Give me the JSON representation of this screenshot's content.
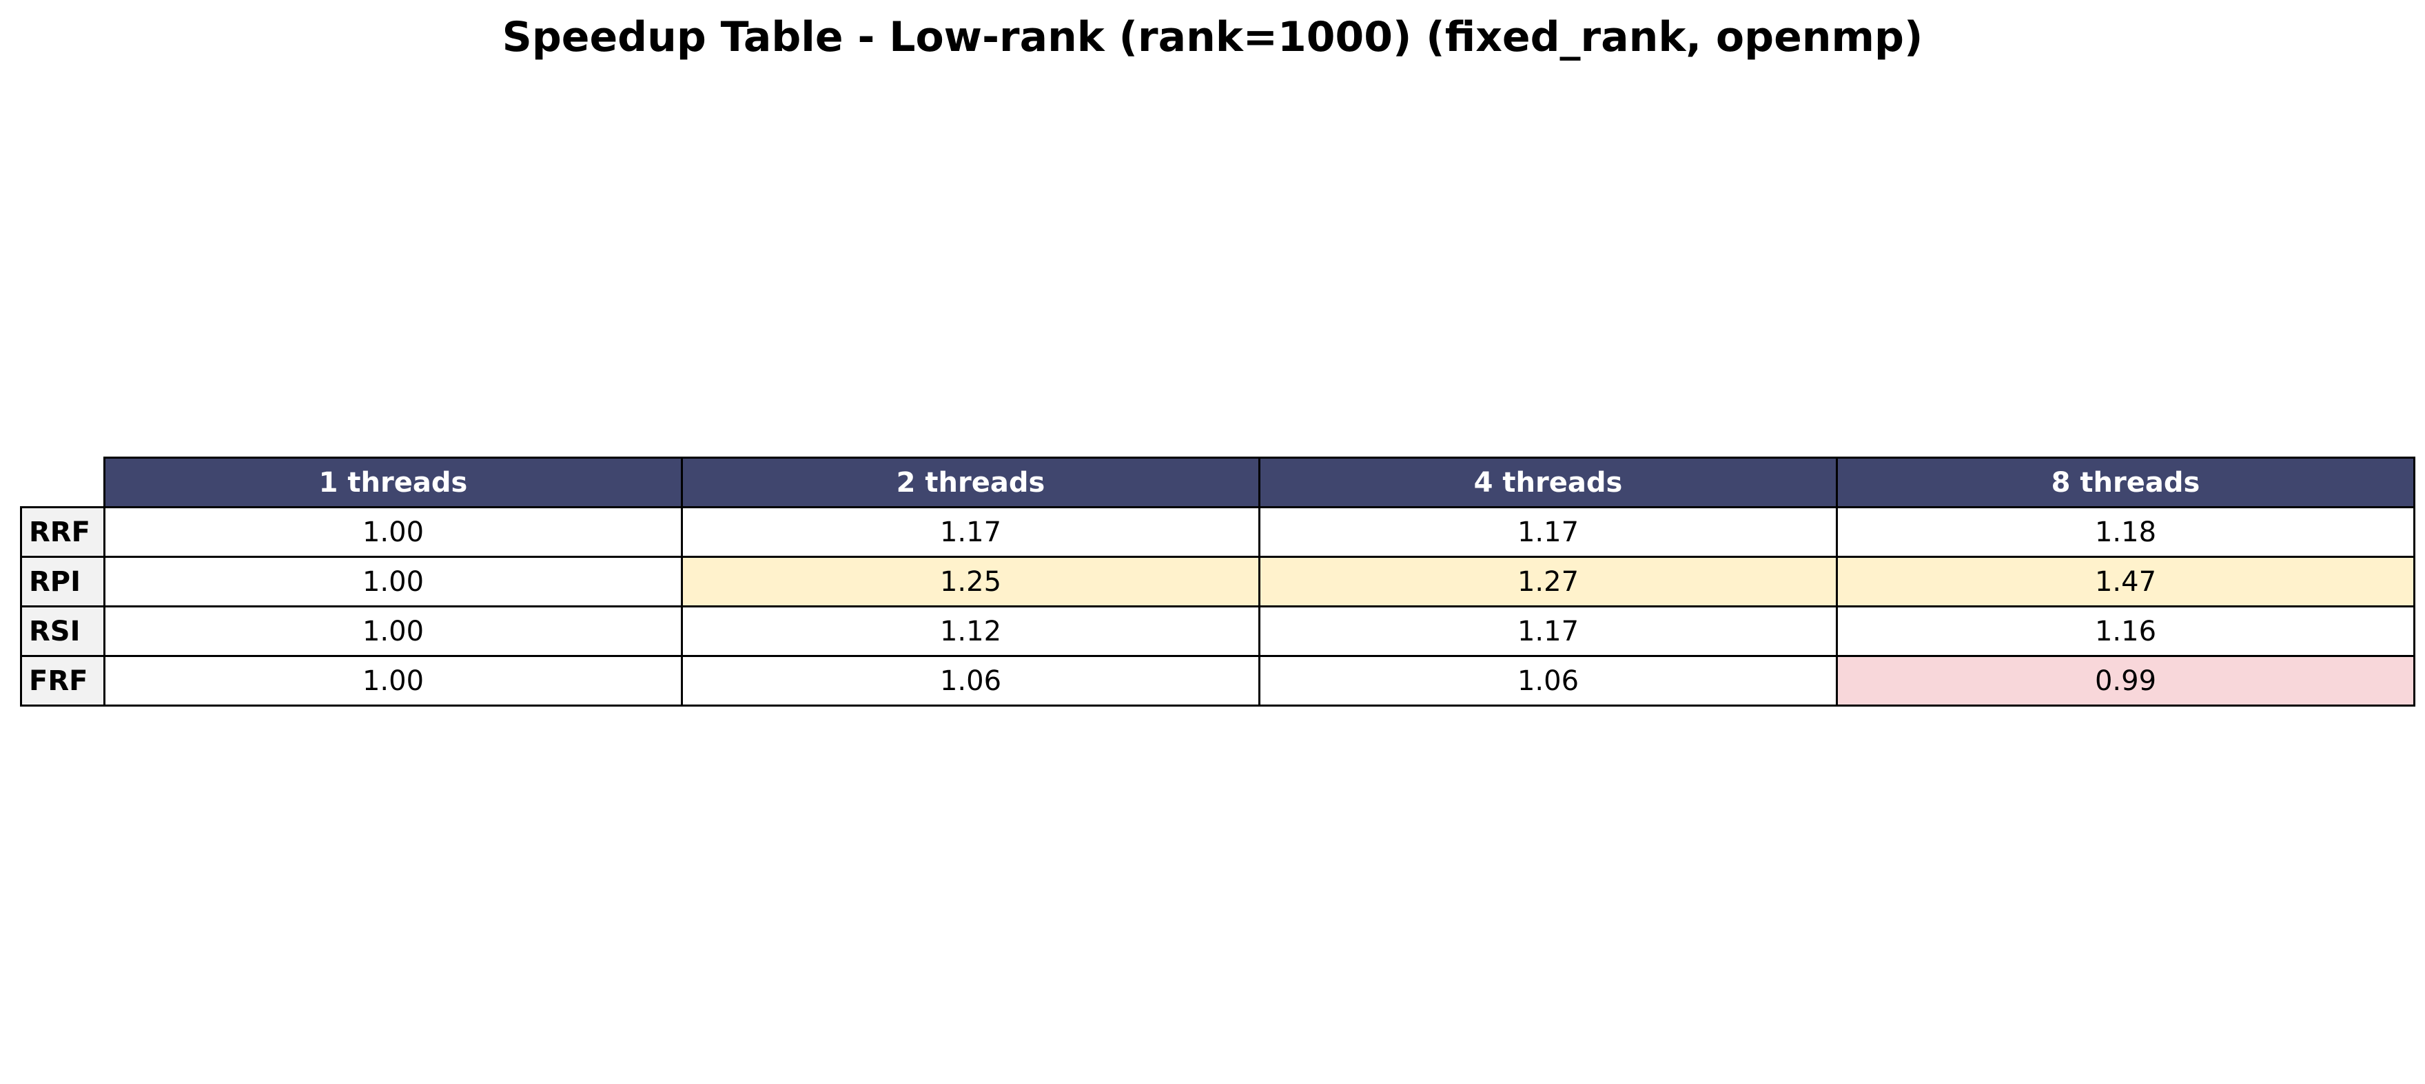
{
  "chart_data": {
    "type": "table",
    "title": "Speedup Table - Low-rank (rank=1000) (fixed_rank, openmp)",
    "columns": [
      "1 threads",
      "2 threads",
      "4 threads",
      "8 threads"
    ],
    "rows": [
      {
        "label": "RRF",
        "values": [
          "1.00",
          "1.17",
          "1.17",
          "1.18"
        ],
        "highlights": [
          "none",
          "none",
          "none",
          "none"
        ]
      },
      {
        "label": "RPI",
        "values": [
          "1.00",
          "1.25",
          "1.27",
          "1.47"
        ],
        "highlights": [
          "none",
          "high",
          "high",
          "high"
        ]
      },
      {
        "label": "RSI",
        "values": [
          "1.00",
          "1.12",
          "1.17",
          "1.16"
        ],
        "highlights": [
          "none",
          "none",
          "none",
          "none"
        ]
      },
      {
        "label": "FRF",
        "values": [
          "1.00",
          "1.06",
          "1.06",
          "0.99"
        ],
        "highlights": [
          "none",
          "none",
          "none",
          "low"
        ]
      }
    ],
    "colors": {
      "header_bg": "#40466e",
      "header_text": "#ffffff",
      "row_header_bg": "#f2f2f2",
      "cell_bg": "#ffffff",
      "highlight_high": "#fff2cc",
      "highlight_low": "#f8d7da",
      "border": "#000000"
    }
  }
}
